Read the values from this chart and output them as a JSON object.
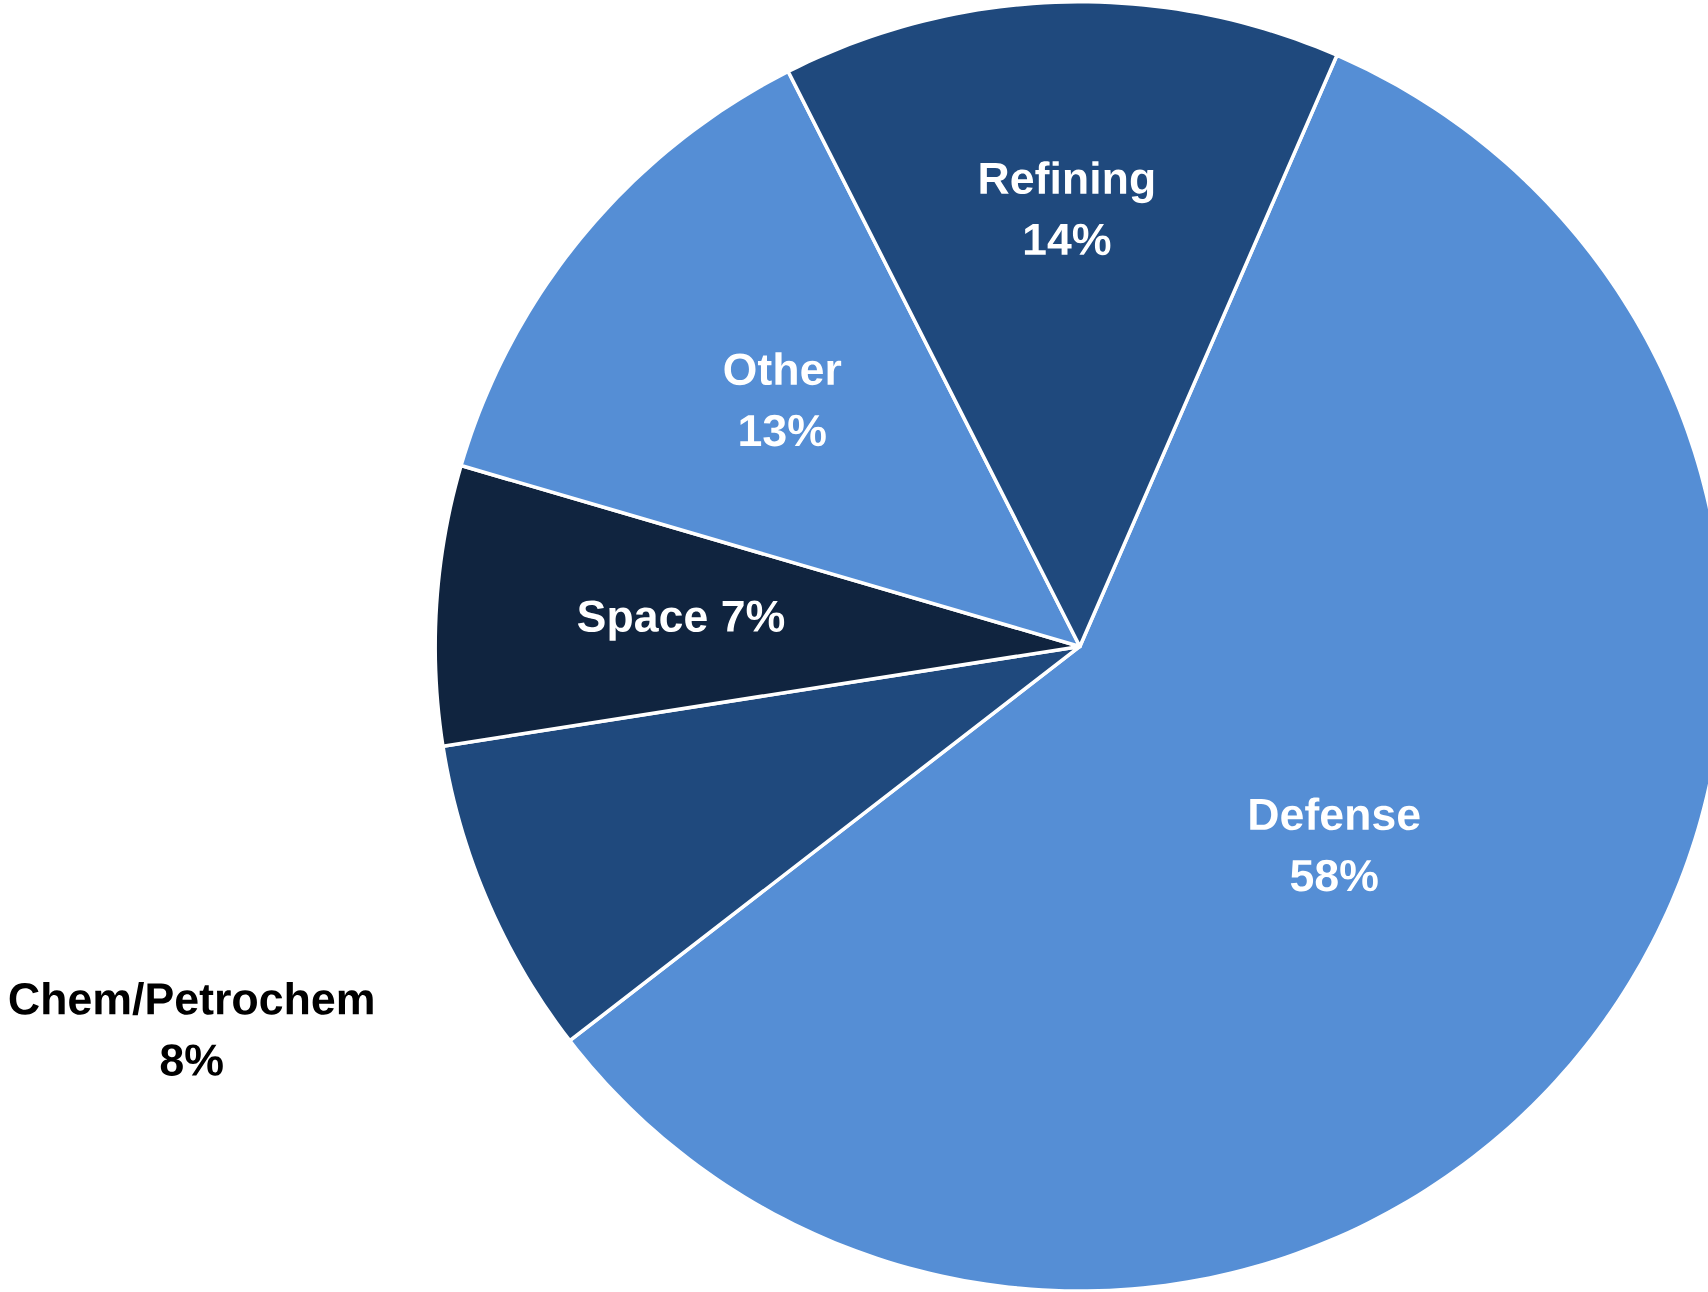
{
  "chart_data": {
    "type": "pie",
    "categories": [
      "Defense",
      "Chem/Petrochem",
      "Space",
      "Other",
      "Refining"
    ],
    "values": [
      58,
      8,
      7,
      13,
      14
    ],
    "colors": [
      "#558ed5",
      "#1f497d",
      "#10243f",
      "#558ed5",
      "#1f497d"
    ],
    "value_labels": [
      "58%",
      "8%",
      "7%",
      "13%",
      "14%"
    ]
  }
}
